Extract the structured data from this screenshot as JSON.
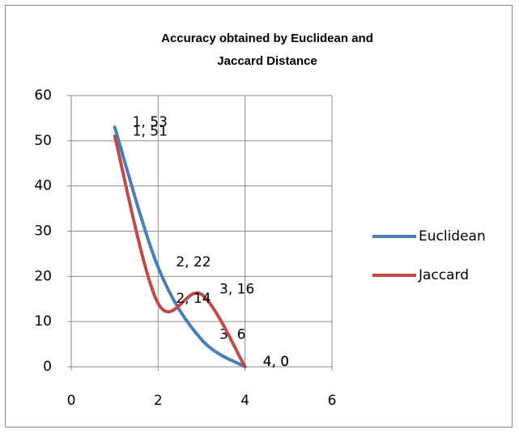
{
  "chart_data": {
    "type": "scatter-smooth-line",
    "title": "Accuracy obtained by Euclidean and Jaccard Distance",
    "xlim": [
      0,
      6
    ],
    "xticks": [
      0,
      2,
      4,
      6
    ],
    "ylim": [
      0,
      60
    ],
    "yticks": [
      0,
      10,
      20,
      30,
      40,
      50,
      60
    ],
    "grid": true,
    "legend": "right",
    "series": [
      {
        "name": "Euclidean",
        "color": "#4a7ebb",
        "x": [
          1,
          2,
          3,
          4
        ],
        "values": [
          53,
          22,
          6,
          0
        ],
        "value_labels": [
          "1, 53",
          "2, 22",
          "3, 6",
          "4, 0"
        ]
      },
      {
        "name": "Jaccard",
        "color": "#be4b48",
        "x": [
          1,
          2,
          3,
          4
        ],
        "values": [
          51,
          14,
          16,
          0
        ],
        "value_labels": [
          "1, 51",
          "2, 14",
          "3, 16",
          "4, 0"
        ]
      }
    ]
  }
}
